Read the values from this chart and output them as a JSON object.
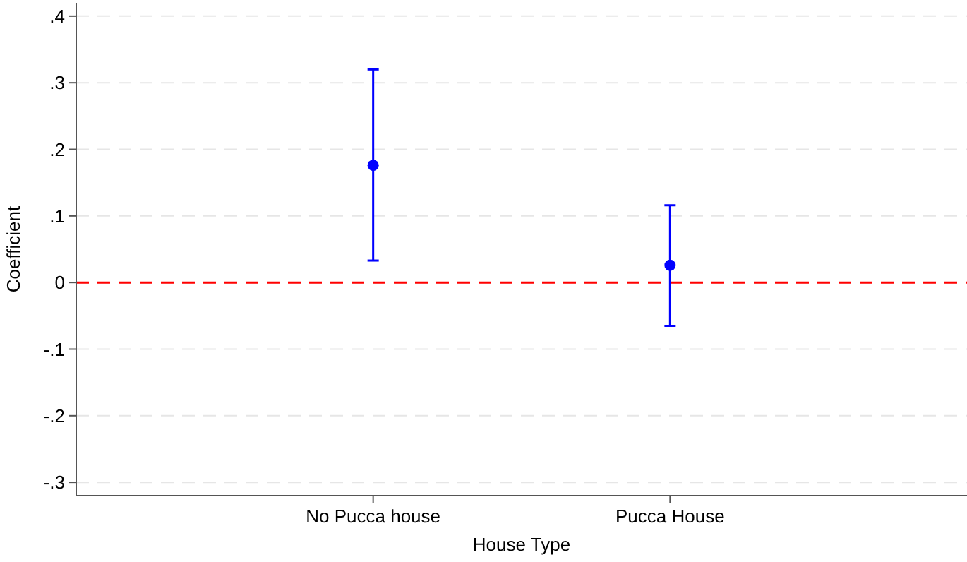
{
  "chart_data": {
    "type": "scatter",
    "xlabel": "House Type",
    "ylabel": "Coefficient",
    "categories": [
      "No Pucca house",
      "Pucca House"
    ],
    "series": [
      {
        "color": "#0000ff",
        "values": [
          0.176,
          0.026
        ],
        "errors": [
          [
            0.033,
            0.32
          ],
          [
            -0.065,
            0.116
          ]
        ]
      }
    ],
    "ylim": [
      -0.32,
      0.42
    ],
    "yticks": [
      {
        "value": -0.3,
        "label": "-.3"
      },
      {
        "value": -0.2,
        "label": "-.2"
      },
      {
        "value": -0.1,
        "label": "-.1"
      },
      0,
      {
        "value": 0.1,
        "label": ".1"
      },
      {
        "value": 0.2,
        "label": ".2"
      },
      {
        "value": 0.3,
        "label": ".3"
      },
      {
        "value": 0.4,
        "label": ".4"
      }
    ],
    "grid": "y",
    "marker": "circle",
    "ref_lines": [
      {
        "axis": "y",
        "value": 0,
        "color": "#ff0000",
        "line_style": "dashed"
      }
    ]
  }
}
